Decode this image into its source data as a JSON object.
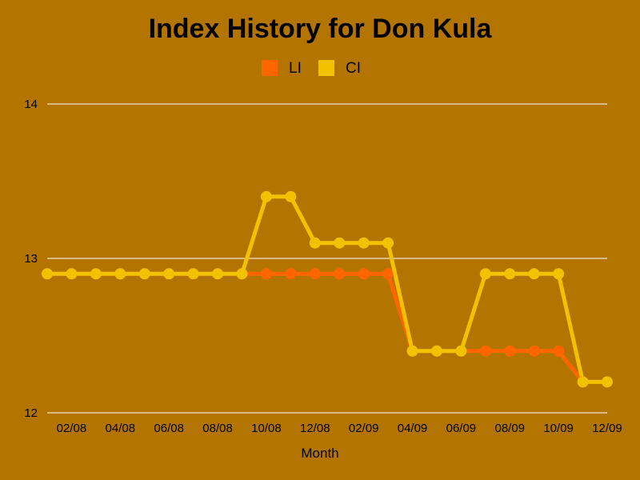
{
  "chart_data": {
    "type": "line",
    "title": "Index History for Don Kula",
    "xlabel": "Month",
    "ylabel": "",
    "ylim": [
      12,
      14
    ],
    "yticks": [
      "12",
      "13",
      "14"
    ],
    "grid": true,
    "legend_position": "top-center",
    "background_color": "#b37400",
    "categories": [
      "01/08",
      "02/08",
      "03/08",
      "04/08",
      "05/08",
      "06/08",
      "07/08",
      "08/08",
      "09/08",
      "10/08",
      "11/08",
      "12/08",
      "01/09",
      "02/09",
      "03/09",
      "04/09",
      "05/09",
      "06/09",
      "07/09",
      "08/09",
      "09/09",
      "10/09",
      "11/09",
      "12/09"
    ],
    "x_tick_labels": [
      "02/08",
      "04/08",
      "06/08",
      "08/08",
      "10/08",
      "12/08",
      "02/09",
      "04/09",
      "06/09",
      "08/09",
      "10/09",
      "12/09"
    ],
    "series": [
      {
        "name": "LI",
        "color": "#ff6600",
        "values": [
          12.9,
          12.9,
          12.9,
          12.9,
          12.9,
          12.9,
          12.9,
          12.9,
          12.9,
          12.9,
          12.9,
          12.9,
          12.9,
          12.9,
          12.9,
          12.4,
          12.4,
          12.4,
          12.4,
          12.4,
          12.4,
          12.4,
          12.2,
          12.2
        ]
      },
      {
        "name": "CI",
        "color": "#f2c200",
        "values": [
          12.9,
          12.9,
          12.9,
          12.9,
          12.9,
          12.9,
          12.9,
          12.9,
          12.9,
          13.4,
          13.4,
          13.1,
          13.1,
          13.1,
          13.1,
          12.4,
          12.4,
          12.4,
          12.9,
          12.9,
          12.9,
          12.9,
          12.2,
          12.2
        ]
      }
    ]
  }
}
